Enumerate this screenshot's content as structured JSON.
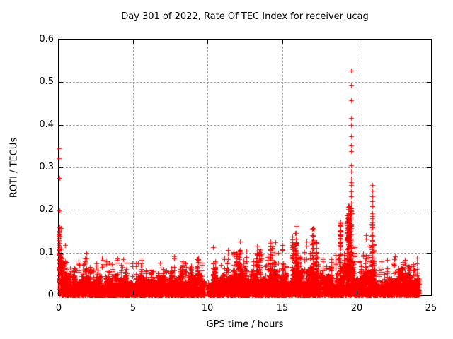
{
  "window": {
    "background": "#ffffff",
    "text_color": "#000000"
  },
  "chart_data": {
    "type": "scatter",
    "title": "Day 301 of 2022, Rate Of TEC Index for receiver ucag",
    "xlabel": "GPS time / hours",
    "ylabel": "ROTI / TECUs",
    "xlim": [
      0,
      25
    ],
    "ylim": [
      0,
      0.6
    ],
    "xticks": [
      0,
      5,
      10,
      15,
      20,
      25
    ],
    "yticks": [
      0,
      0.1,
      0.2,
      0.3,
      0.4,
      0.5,
      0.6
    ],
    "xtick_labels": [
      "0",
      "5",
      "10",
      "15",
      "20",
      "25"
    ],
    "ytick_labels": [
      "0",
      "0.1",
      "0.2",
      "0.3",
      "0.4",
      "0.5",
      "0.6"
    ],
    "grid": "dashed",
    "grid_color": "#a8a8a8",
    "axis_color": "#000000",
    "marker": {
      "shape": "plus",
      "color": "#ff0000",
      "size": 7
    },
    "data_time_range": [
      0,
      24.2
    ],
    "data_gap_hours": [
      9.78,
      10.03
    ],
    "band_step_hours": 0.5,
    "band_top": [
      0.12,
      0.05,
      0.05,
      0.058,
      0.05,
      0.046,
      0.046,
      0.05,
      0.046,
      0.055,
      0.042,
      0.05,
      0.05,
      0.042,
      0.055,
      0.042,
      0.05,
      0.055,
      0.06,
      0.055,
      0.042,
      0.06,
      0.05,
      0.055,
      0.075,
      0.065,
      0.06,
      0.07,
      0.055,
      0.06,
      0.07,
      0.055,
      0.085,
      0.055,
      0.09,
      0.055,
      0.055,
      0.05,
      0.07,
      0.12,
      0.04,
      0.065,
      0.09,
      0.04,
      0.05,
      0.05,
      0.07,
      0.06,
      0.05,
      0.045
    ],
    "spikes": [
      [
        0.03,
        0.16
      ],
      [
        0.15,
        0.09
      ],
      [
        0.35,
        0.075
      ],
      [
        1.05,
        0.065
      ],
      [
        1.6,
        0.072
      ],
      [
        2.1,
        0.066
      ],
      [
        2.6,
        0.06
      ],
      [
        3.3,
        0.056
      ],
      [
        4.5,
        0.062
      ],
      [
        5.5,
        0.056
      ],
      [
        6.2,
        0.055
      ],
      [
        7.0,
        0.062
      ],
      [
        7.6,
        0.055
      ],
      [
        8.3,
        0.08
      ],
      [
        8.9,
        0.07
      ],
      [
        9.3,
        0.085
      ],
      [
        10.5,
        0.08
      ],
      [
        11.3,
        0.076
      ],
      [
        11.95,
        0.1
      ],
      [
        12.1,
        0.104
      ],
      [
        12.55,
        0.075
      ],
      [
        13.3,
        0.116
      ],
      [
        13.5,
        0.108
      ],
      [
        14.2,
        0.126
      ],
      [
        14.35,
        0.115
      ],
      [
        15.05,
        0.075
      ],
      [
        15.7,
        0.138
      ],
      [
        15.9,
        0.146
      ],
      [
        16.1,
        0.09
      ],
      [
        17.05,
        0.158
      ],
      [
        17.3,
        0.125
      ],
      [
        18.3,
        0.07
      ],
      [
        18.9,
        0.172
      ],
      [
        19.35,
        0.187
      ],
      [
        19.45,
        0.21
      ],
      [
        19.55,
        0.19
      ],
      [
        19.63,
        0.217
      ],
      [
        20.3,
        0.07
      ],
      [
        20.6,
        0.075
      ],
      [
        21.05,
        0.21
      ],
      [
        21.15,
        0.12
      ],
      [
        22.8,
        0.065
      ],
      [
        23.1,
        0.078
      ],
      [
        23.5,
        0.068
      ],
      [
        23.9,
        0.06
      ]
    ],
    "outliers": [
      [
        0.02,
        0.345
      ],
      [
        0.02,
        0.322
      ],
      [
        0.03,
        0.275
      ],
      [
        0.03,
        0.199
      ],
      [
        19.63,
        0.527
      ],
      [
        19.62,
        0.493
      ],
      [
        19.63,
        0.457
      ],
      [
        19.64,
        0.416
      ],
      [
        19.63,
        0.399
      ],
      [
        19.63,
        0.373
      ],
      [
        19.62,
        0.352
      ],
      [
        19.64,
        0.338
      ],
      [
        19.63,
        0.305
      ],
      [
        19.63,
        0.29
      ],
      [
        19.64,
        0.274
      ],
      [
        19.62,
        0.265
      ],
      [
        19.63,
        0.259
      ],
      [
        19.63,
        0.243
      ],
      [
        19.64,
        0.232
      ],
      [
        21.05,
        0.258
      ],
      [
        21.07,
        0.246
      ],
      [
        21.05,
        0.232
      ],
      [
        21.06,
        0.22
      ],
      [
        18.9,
        0.172
      ],
      [
        18.9,
        0.162
      ],
      [
        18.91,
        0.152
      ],
      [
        18.89,
        0.143
      ],
      [
        18.9,
        0.133
      ],
      [
        18.91,
        0.124
      ],
      [
        18.9,
        0.115
      ]
    ],
    "seed": 1234567
  }
}
